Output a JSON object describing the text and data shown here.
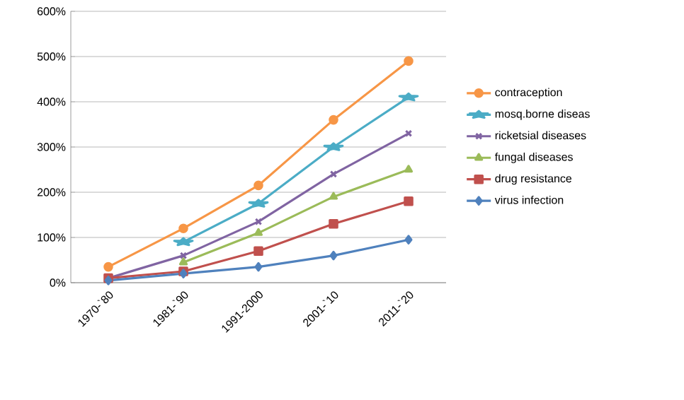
{
  "chart_data": {
    "type": "line",
    "categories": [
      "1970-`80",
      "1981-`90",
      "1991-2000",
      "2001-`10",
      "2011-`20"
    ],
    "series": [
      {
        "name": "contraception",
        "color": "#f79646",
        "marker": "circle",
        "values": [
          35,
          120,
          215,
          360,
          490
        ]
      },
      {
        "name": "mosq.borne diseas",
        "color": "#4bacc6",
        "marker": "star",
        "values": [
          null,
          90,
          175,
          300,
          410
        ]
      },
      {
        "name": "ricketsial diseases",
        "color": "#8064a2",
        "marker": "cross",
        "values": [
          10,
          60,
          135,
          240,
          330
        ]
      },
      {
        "name": "fungal diseases",
        "color": "#9bbb59",
        "marker": "triangle",
        "values": [
          null,
          45,
          110,
          190,
          250
        ]
      },
      {
        "name": "drug resistance",
        "color": "#c0504d",
        "marker": "square",
        "values": [
          10,
          25,
          70,
          130,
          180
        ]
      },
      {
        "name": "virus infection",
        "color": "#4f81bd",
        "marker": "diamond",
        "values": [
          5,
          20,
          35,
          60,
          95
        ]
      }
    ],
    "ylim": [
      0,
      600
    ],
    "yticks": [
      {
        "value": 0,
        "label": "0%"
      },
      {
        "value": 100,
        "label": "100%"
      },
      {
        "value": 200,
        "label": "200%"
      },
      {
        "value": 300,
        "label": "300%"
      },
      {
        "value": 400,
        "label": "400%"
      },
      {
        "value": 500,
        "label": "500%"
      },
      {
        "value": 600,
        "label": "600%"
      }
    ],
    "grid": "y",
    "legend": "right"
  }
}
